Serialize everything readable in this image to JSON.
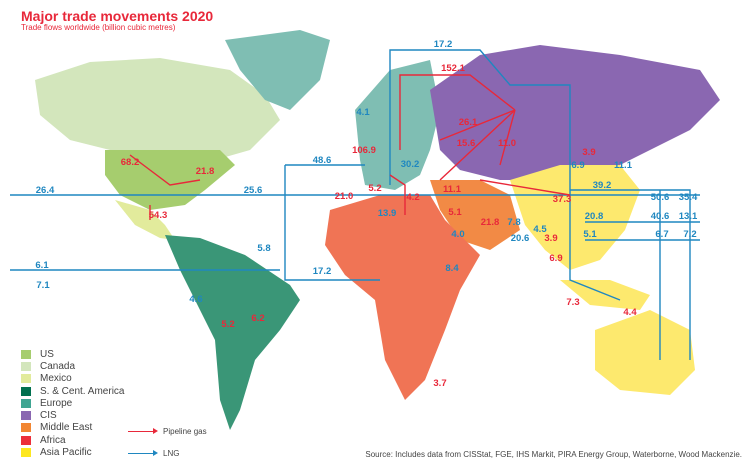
{
  "header": {
    "title": "Major trade movements 2020",
    "subtitle": "Trade flows worldwide (billion cubic metres)"
  },
  "legend": {
    "regions": [
      {
        "label": "US",
        "color": "#a6cd6e"
      },
      {
        "label": "Canada",
        "color": "#d3e6bc"
      },
      {
        "label": "Mexico",
        "color": "#e2eb9c"
      },
      {
        "label": "S. & Cent. America",
        "color": "#00704f"
      },
      {
        "label": "Europe",
        "color": "#3fa592"
      },
      {
        "label": "CIS",
        "color": "#8a67b1"
      },
      {
        "label": "Middle East",
        "color": "#f28632"
      },
      {
        "label": "Africa",
        "color": "#ec2f3a"
      },
      {
        "label": "Asia Pacific",
        "color": "#fde71f"
      }
    ],
    "pipeline_label": "Pipeline gas",
    "lng_label": "LNG",
    "pipeline_color": "#e8283a",
    "lng_color": "#1f87c0"
  },
  "flows": {
    "pipeline": [
      "68.2",
      "21.8",
      "54.3",
      "152.1",
      "26.1",
      "106.9",
      "15.6",
      "11.0",
      "21.0",
      "5.2",
      "4.2",
      "11.1",
      "37.3",
      "5.1",
      "21.8",
      "3.9",
      "3.9",
      "6.9",
      "7.3",
      "4.4",
      "6.2",
      "5.2",
      "3.7"
    ],
    "lng": [
      "17.2",
      "4.1",
      "48.6",
      "30.2",
      "13.9",
      "26.4",
      "25.6",
      "6.1",
      "7.1",
      "5.8",
      "4.6",
      "17.2",
      "7.8",
      "4.5",
      "20.6",
      "4.0",
      "8.4",
      "6.9",
      "11.1",
      "39.2",
      "50.6",
      "35.4",
      "20.8",
      "40.6",
      "13.1",
      "5.1",
      "6.7",
      "7.2"
    ]
  },
  "source": "Source: Includes data from CISStat, FGE, IHS Markit, PIRA Energy Group, Waterborne, Wood Mackenzie."
}
